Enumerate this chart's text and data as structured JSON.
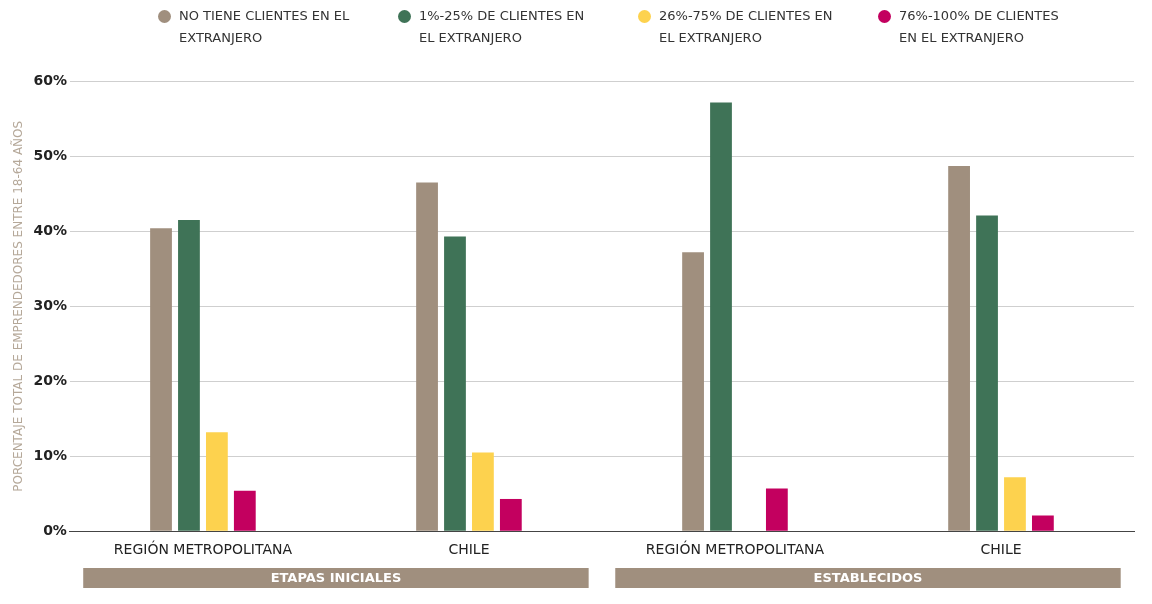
{
  "chart_data": {
    "type": "bar",
    "ylabel": "PORCENTAJE TOTAL DE EMPRENDEDORES ENTRE 18-64 AÑOS",
    "categories": [
      "REGIÓN METROPOLITANA",
      "CHILE",
      "REGIÓN METROPOLITANA",
      "CHILE"
    ],
    "series": [
      {
        "name": "NO TIENE CLIENTES EN EL EXTRANJERO",
        "color": "#a08f7e",
        "values": [
          40.4,
          46.5,
          37.2,
          48.7
        ]
      },
      {
        "name": "1%-25% DE CLIENTES EN EL EXTRANJERO",
        "color": "#3f7357",
        "values": [
          41.5,
          39.3,
          57.2,
          42.1
        ]
      },
      {
        "name": "26%-75% DE CLIENTES EN EL EXTRANJERO",
        "color": "#fdd24e",
        "values": [
          13.2,
          10.5,
          null,
          7.2
        ]
      },
      {
        "name": "76%-100% DE CLIENTES EN EL EXTRANJERO",
        "color": "#c3005f",
        "values": [
          5.4,
          4.3,
          5.7,
          2.1
        ]
      }
    ],
    "ylim": [
      0,
      60
    ],
    "yticks": [
      {
        "value": 0,
        "label": "0%"
      },
      {
        "value": 10,
        "label": "10%"
      },
      {
        "value": 20,
        "label": "20%"
      },
      {
        "value": 30,
        "label": "30%"
      },
      {
        "value": 40,
        "label": "40%"
      },
      {
        "value": 50,
        "label": "50%"
      },
      {
        "value": 60,
        "label": "60%"
      }
    ],
    "grid": "y",
    "legend": "top",
    "annotations": [
      "ETAPAS INICIALES",
      "ESTABLECIDOS"
    ]
  }
}
